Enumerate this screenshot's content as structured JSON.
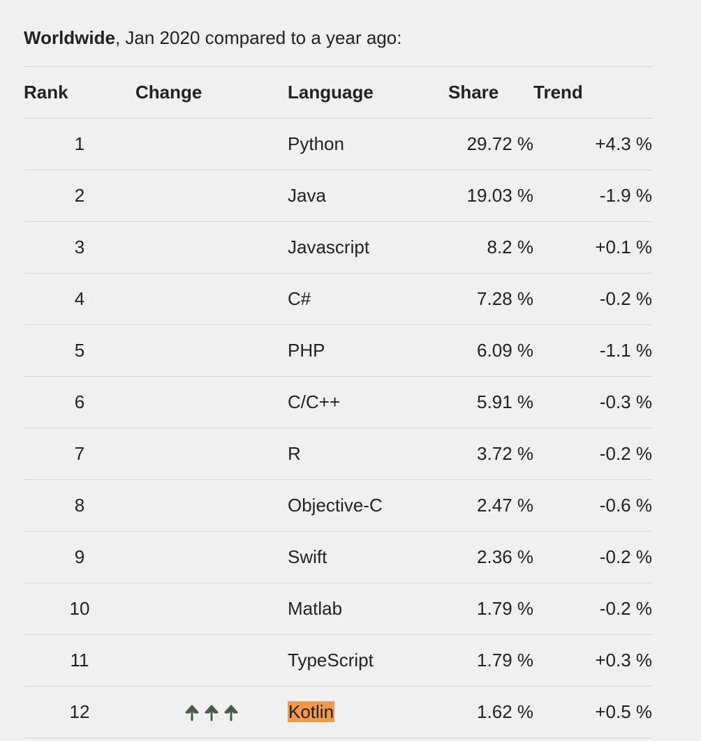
{
  "heading": {
    "bold": "Worldwide",
    "rest": ", Jan 2020 compared to a year ago:"
  },
  "table": {
    "headers": {
      "rank": "Rank",
      "change": "Change",
      "language": "Language",
      "share": "Share",
      "trend": "Trend"
    },
    "rows": [
      {
        "rank": "1",
        "language": "Python",
        "share": "29.72 %",
        "trend": "+4.3 %"
      },
      {
        "rank": "2",
        "language": "Java",
        "share": "19.03 %",
        "trend": "-1.9 %"
      },
      {
        "rank": "3",
        "language": "Javascript",
        "share": "8.2 %",
        "trend": "+0.1 %"
      },
      {
        "rank": "4",
        "language": "C#",
        "share": "7.28 %",
        "trend": "-0.2 %"
      },
      {
        "rank": "5",
        "language": "PHP",
        "share": "6.09 %",
        "trend": "-1.1 %"
      },
      {
        "rank": "6",
        "language": "C/C++",
        "share": "5.91 %",
        "trend": "-0.3 %"
      },
      {
        "rank": "7",
        "language": "R",
        "share": "3.72 %",
        "trend": "-0.2 %"
      },
      {
        "rank": "8",
        "language": "Objective-C",
        "share": "2.47 %",
        "trend": "-0.6 %"
      },
      {
        "rank": "9",
        "language": "Swift",
        "share": "2.36 %",
        "trend": "-0.2 %"
      },
      {
        "rank": "10",
        "language": "Matlab",
        "share": "1.79 %",
        "trend": "-0.2 %"
      },
      {
        "rank": "11",
        "language": "TypeScript",
        "share": "1.79 %",
        "trend": "+0.3 %"
      },
      {
        "rank": "12",
        "language": "Kotlin",
        "share": "1.62 %",
        "trend": "+0.5 %",
        "change_icon": "triple-up-arrow-icon",
        "highlight_color": "#f3994b"
      }
    ]
  },
  "colors": {
    "background": "#f0f0f0",
    "text": "#222222",
    "divider": "#d6d6d6",
    "highlight": "#f3994b",
    "arrow": "#4a5a4a"
  }
}
